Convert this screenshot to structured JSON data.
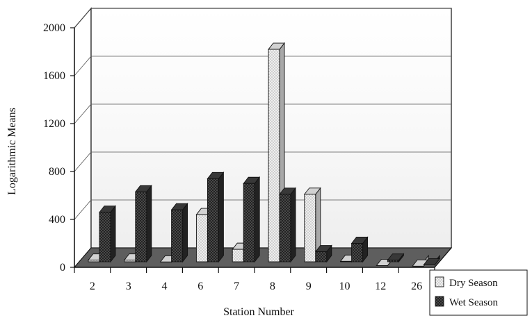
{
  "chart_data": {
    "type": "bar",
    "three_d": true,
    "title": "",
    "xlabel": "Station Number",
    "ylabel": "Logarithmic Means",
    "categories": [
      "2",
      "3",
      "4",
      "6",
      "7",
      "8",
      "9",
      "10",
      "12",
      "26"
    ],
    "series": [
      {
        "name": "Dry Season",
        "values": [
          60,
          60,
          45,
          440,
          150,
          1820,
          610,
          50,
          15,
          10
        ],
        "pattern": "light-dots"
      },
      {
        "name": "Wet Season",
        "values": [
          460,
          630,
          480,
          740,
          700,
          610,
          130,
          200,
          60,
          20
        ],
        "pattern": "dark-crosshatch"
      }
    ],
    "ylim": [
      0,
      2000
    ],
    "yticks": [
      0,
      400,
      800,
      1200,
      1600,
      2000
    ],
    "grid": true,
    "legend": "bottom-right",
    "colors": {
      "dry_front": "#e6e6e6",
      "dry_side": "#a8a8a8",
      "dry_top": "#d2d2d2",
      "wet_front": "#444444",
      "wet_side": "#222222",
      "wet_top": "#383838",
      "floor": "#5e5e5e",
      "wall": "#ffffff",
      "line": "#111111"
    }
  }
}
